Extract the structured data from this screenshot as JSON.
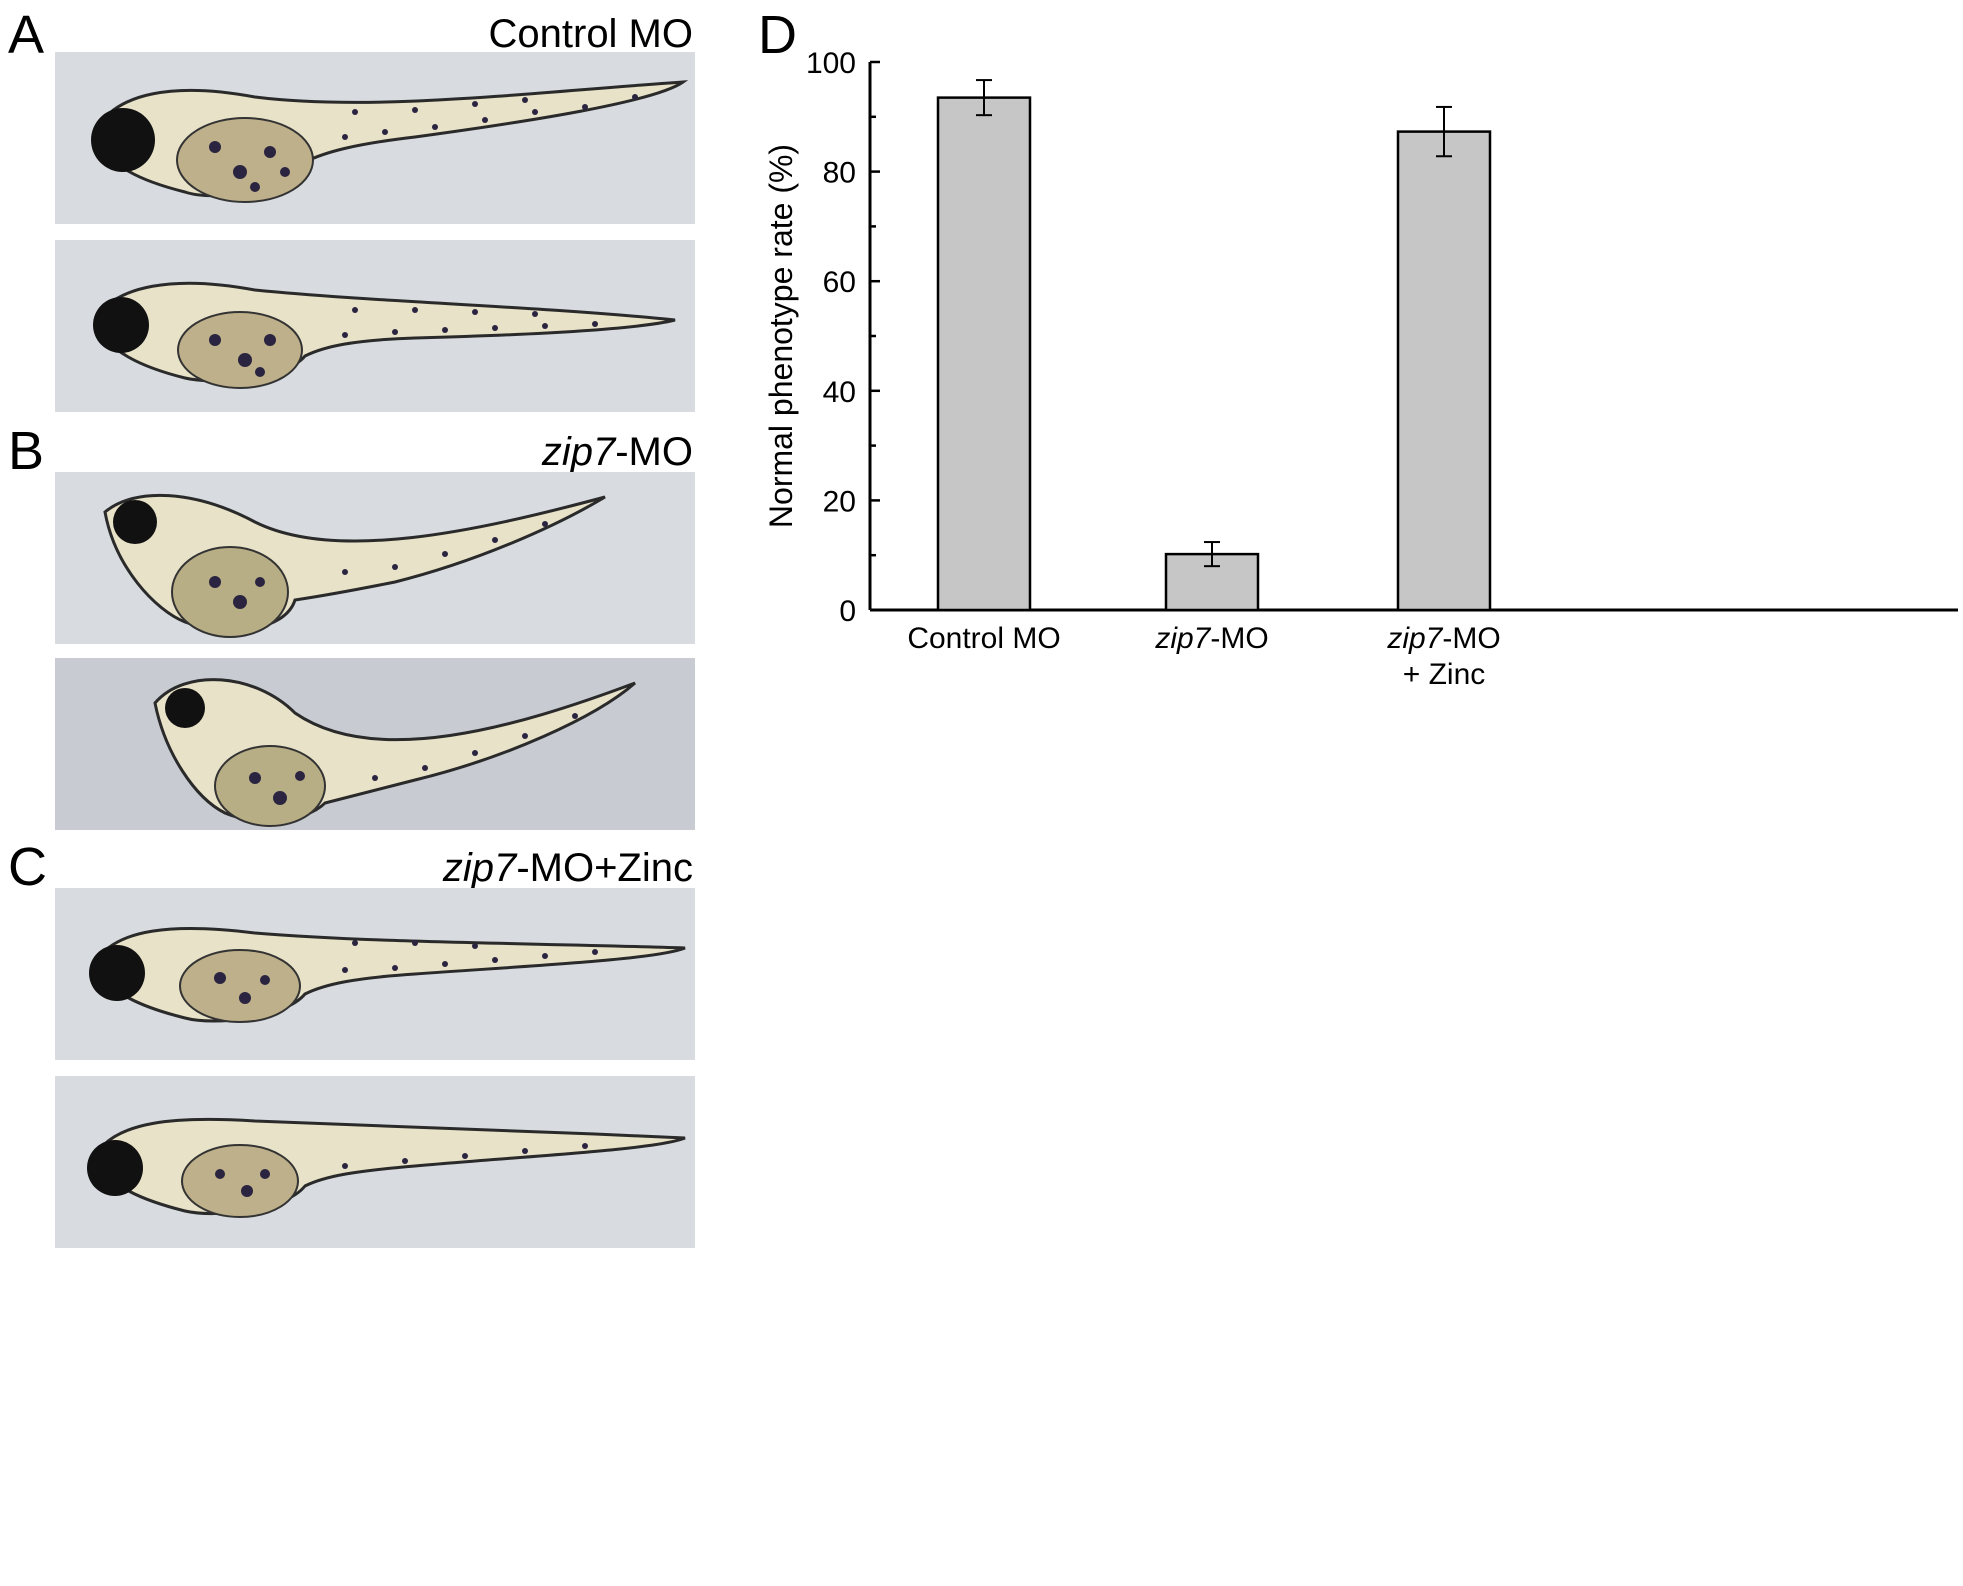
{
  "panels": {
    "A": {
      "letter": "A",
      "title": "Control MO"
    },
    "B": {
      "letter": "B",
      "title_italic": "zip7",
      "title_rest": "-MO"
    },
    "C": {
      "letter": "C",
      "title_italic": "zip7",
      "title_rest": "-MO+Zinc"
    },
    "D": {
      "letter": "D"
    }
  },
  "colors": {
    "bar_fill": "#c6c6c6",
    "bar_stroke": "#000000",
    "photo_bg": "#d8dce0"
  },
  "chart_data": {
    "type": "bar",
    "categories": [
      {
        "italic": "",
        "rest": "Control MO",
        "line2": ""
      },
      {
        "italic": "zip7",
        "rest": "-MO",
        "line2": ""
      },
      {
        "italic": "zip7",
        "rest": "-MO",
        "line2": "+ Zinc"
      }
    ],
    "values": [
      93.5,
      10.2,
      87.3
    ],
    "errors": [
      3.2,
      2.2,
      4.5
    ],
    "ylabel": "Normal phenotype rate (%)",
    "ylim": [
      0,
      100
    ],
    "yticks": [
      0,
      20,
      40,
      60,
      80,
      100
    ],
    "grid": false
  }
}
